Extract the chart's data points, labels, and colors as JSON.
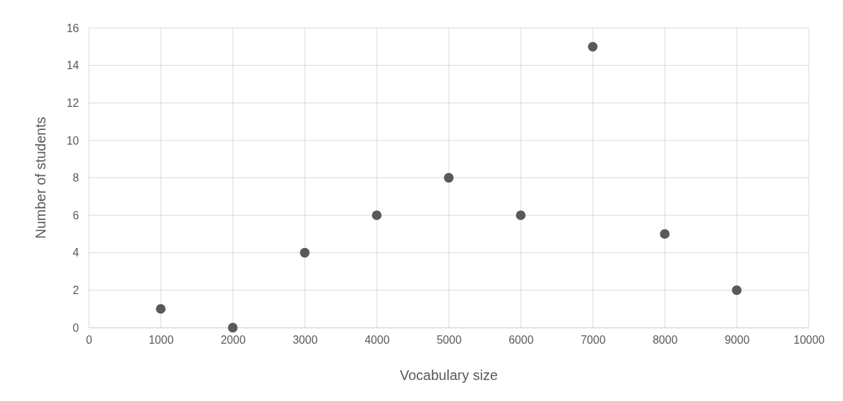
{
  "chart_data": {
    "type": "scatter",
    "xlabel": "Vocabulary size",
    "ylabel": "Number of students",
    "x": [
      1000,
      2000,
      3000,
      4000,
      5000,
      6000,
      7000,
      8000,
      9000
    ],
    "values": [
      1,
      0,
      4,
      6,
      8,
      6,
      15,
      5,
      2
    ],
    "color": "#595959",
    "marker": "circle",
    "xlim": [
      0,
      10000
    ],
    "xticks": [
      0,
      1000,
      2000,
      3000,
      4000,
      5000,
      6000,
      7000,
      8000,
      9000,
      10000
    ],
    "ylim": [
      0,
      16
    ],
    "yticks": [
      0,
      2,
      4,
      6,
      8,
      10,
      12,
      14,
      16
    ],
    "grid": true
  }
}
